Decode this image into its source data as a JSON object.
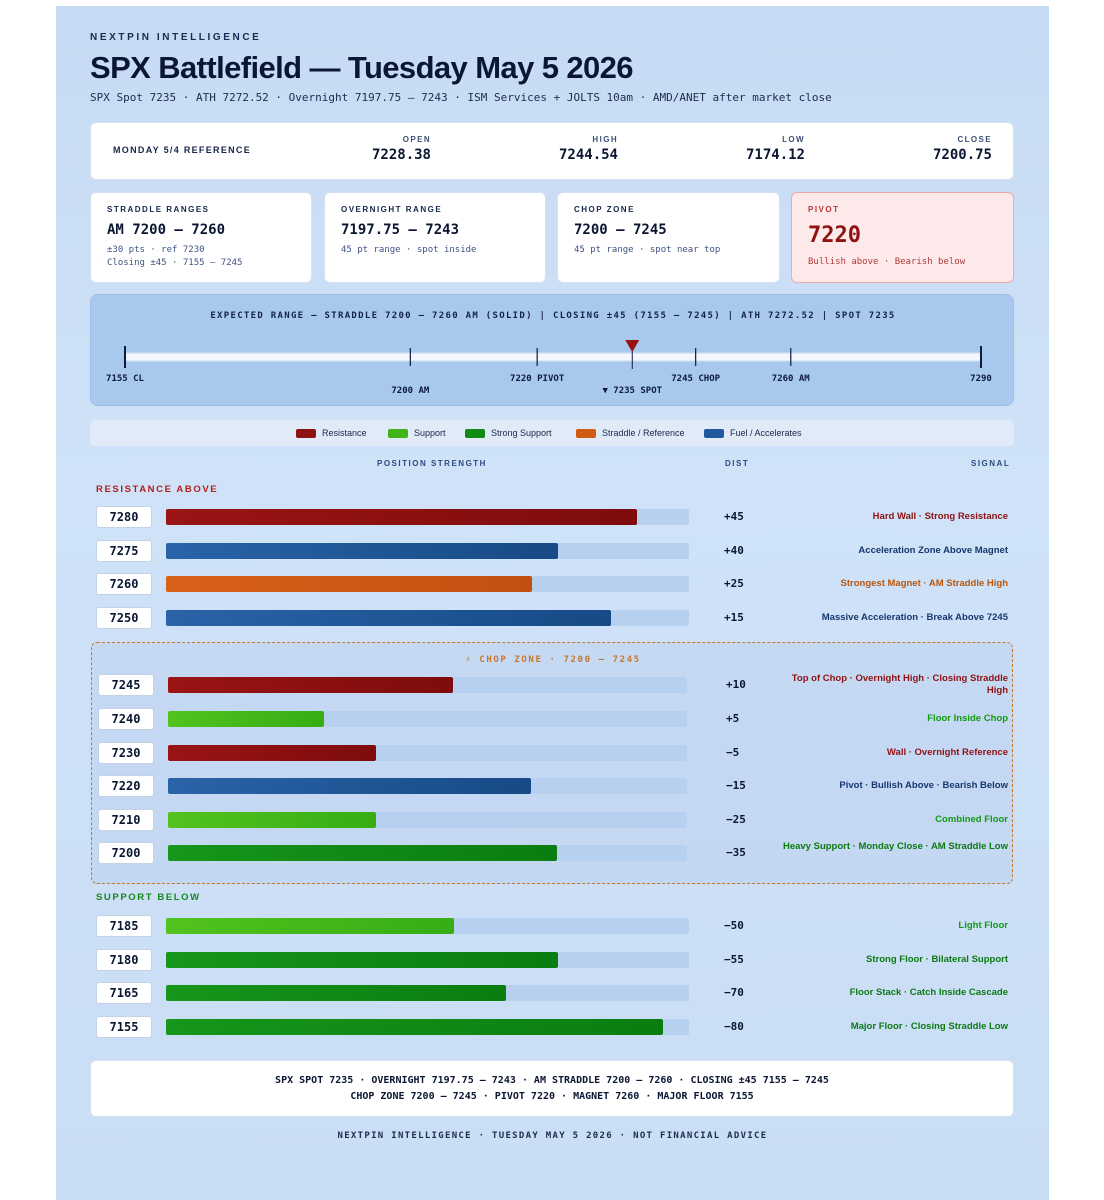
{
  "header": {
    "brand": "NEXTPIN INTELLIGENCE",
    "title": "SPX Battlefield — Tuesday May 5 2026",
    "subtitle": "SPX Spot 7235 · ATH 7272.52 · Overnight 7197.75 — 7243 · ISM Services + JOLTS 10am · AMD/ANET after market close"
  },
  "reference": {
    "label": "MONDAY 5/4 REFERENCE",
    "columns": [
      {
        "k": "OPEN",
        "v": "7228.38"
      },
      {
        "k": "HIGH",
        "v": "7244.54"
      },
      {
        "k": "LOW",
        "v": "7174.12"
      },
      {
        "k": "CLOSE",
        "v": "7200.75"
      }
    ]
  },
  "stat_cards": [
    {
      "k": "STRADDLE RANGES",
      "v": "AM 7200 — 7260",
      "d1": "±30 pts · ref 7230",
      "d2": "Closing ±45 · 7155 — 7245"
    },
    {
      "k": "OVERNIGHT RANGE",
      "v": "7197.75 — 7243",
      "d1": "45 pt range · spot inside",
      "d2": ""
    },
    {
      "k": "CHOP ZONE",
      "v": "7200 — 7245",
      "d1": "45 pt range · spot near top",
      "d2": ""
    },
    {
      "k": "PIVOT",
      "v": "7220",
      "d1": "Bullish above · Bearish below",
      "d2": ""
    }
  ],
  "range_chart": {
    "title": "EXPECTED RANGE — STRADDLE 7200 — 7260 AM (SOLID) | CLOSING ±45 (7155 — 7245) | ATH 7272.52 | SPOT 7235",
    "min": 7155,
    "max": 7290,
    "spot": 7235,
    "spot_label": "▼ 7235 SPOT",
    "ticks": [
      {
        "v": 7155,
        "label": "7155 CL",
        "pos": "above",
        "edge": true
      },
      {
        "v": 7200,
        "label": "7200 AM",
        "pos": "below",
        "edge": false
      },
      {
        "v": 7220,
        "label": "7220 PIVOT",
        "pos": "above",
        "edge": false
      },
      {
        "v": 7245,
        "label": "7245 CHOP",
        "pos": "above",
        "edge": false
      },
      {
        "v": 7260,
        "label": "7260 AM",
        "pos": "above",
        "edge": false
      },
      {
        "v": 7290,
        "label": "7290",
        "pos": "above",
        "edge": true
      }
    ],
    "spot_color": "#9b1010"
  },
  "legend": [
    {
      "label": "Resistance",
      "color": "#8e1212"
    },
    {
      "label": "Support",
      "color": "#3fb51a"
    },
    {
      "label": "Strong Support",
      "color": "#0f8a12"
    },
    {
      "label": "Straddle / Reference",
      "color": "#cf5a12"
    },
    {
      "label": "Fuel / Accelerates",
      "color": "#1f5a9e"
    }
  ],
  "columns": {
    "strength": "POSITION STRENGTH",
    "dist": "DIST",
    "signal": "SIGNAL"
  },
  "sections": {
    "resistance": "RESISTANCE ABOVE",
    "chop": "⚡ CHOP ZONE · 7200 — 7245",
    "support": "SUPPORT BELOW"
  },
  "colors": {
    "resistance": "#8e1212",
    "support": "#3fb51a",
    "strong": "#0f8a12",
    "straddle": "#cf5a12",
    "fuel": "#1f5a9e",
    "sig_resistance": "#8e1212",
    "sig_support": "#129a12",
    "sig_strong": "#0c7a12",
    "sig_straddle": "#b8560f",
    "sig_fuel": "#17386e"
  },
  "chart_data": {
    "type": "bar",
    "orientation": "horizontal",
    "categories": [
      "7280",
      "7275",
      "7260",
      "7250",
      "7245",
      "7240",
      "7230",
      "7220",
      "7210",
      "7200",
      "7185",
      "7180",
      "7165",
      "7155"
    ],
    "values": [
      0.9,
      0.75,
      0.7,
      0.85,
      0.55,
      0.3,
      0.4,
      0.7,
      0.4,
      0.75,
      0.55,
      0.75,
      0.65,
      0.95
    ],
    "xlabel": "POSITION STRENGTH",
    "rows": [
      {
        "section": "resistance",
        "price": "7280",
        "strength": 0.9,
        "kind": "resistance",
        "dist": "+45",
        "signal": "Hard Wall · Strong Resistance"
      },
      {
        "section": "resistance",
        "price": "7275",
        "strength": 0.75,
        "kind": "fuel",
        "dist": "+40",
        "signal": "Acceleration Zone Above Magnet"
      },
      {
        "section": "resistance",
        "price": "7260",
        "strength": 0.7,
        "kind": "straddle",
        "dist": "+25",
        "signal": "Strongest Magnet · AM Straddle High"
      },
      {
        "section": "resistance",
        "price": "7250",
        "strength": 0.85,
        "kind": "fuel",
        "dist": "+15",
        "signal": "Massive Acceleration · Break Above 7245"
      },
      {
        "section": "chop",
        "price": "7245",
        "strength": 0.55,
        "kind": "resistance",
        "dist": "+10",
        "signal": "Top of Chop · Overnight High · Closing Straddle High"
      },
      {
        "section": "chop",
        "price": "7240",
        "strength": 0.3,
        "kind": "support",
        "dist": "+5",
        "signal": "Floor Inside Chop"
      },
      {
        "section": "chop",
        "price": "7230",
        "strength": 0.4,
        "kind": "resistance",
        "dist": "−5",
        "signal": "Wall · Overnight Reference"
      },
      {
        "section": "chop",
        "price": "7220",
        "strength": 0.7,
        "kind": "fuel",
        "dist": "−15",
        "signal": "Pivot · Bullish Above · Bearish Below"
      },
      {
        "section": "chop",
        "price": "7210",
        "strength": 0.4,
        "kind": "support",
        "dist": "−25",
        "signal": "Combined Floor"
      },
      {
        "section": "chop",
        "price": "7200",
        "strength": 0.75,
        "kind": "strong",
        "dist": "−35",
        "signal": "Heavy Support · Monday Close · AM Straddle Low"
      },
      {
        "section": "support",
        "price": "7185",
        "strength": 0.55,
        "kind": "support",
        "dist": "−50",
        "signal": "Light Floor"
      },
      {
        "section": "support",
        "price": "7180",
        "strength": 0.75,
        "kind": "strong",
        "dist": "−55",
        "signal": "Strong Floor · Bilateral Support"
      },
      {
        "section": "support",
        "price": "7165",
        "strength": 0.65,
        "kind": "strong",
        "dist": "−70",
        "signal": "Floor Stack · Catch Inside Cascade"
      },
      {
        "section": "support",
        "price": "7155",
        "strength": 0.95,
        "kind": "strong",
        "dist": "−80",
        "signal": "Major Floor · Closing Straddle Low"
      }
    ]
  },
  "summary": {
    "line1": "SPX SPOT 7235 · OVERNIGHT 7197.75 — 7243 · AM STRADDLE 7200 — 7260 · CLOSING ±45 7155 — 7245",
    "line2": "CHOP ZONE 7200 — 7245 · PIVOT 7220 · MAGNET 7260 · MAJOR FLOOR 7155"
  },
  "footer": "NEXTPIN INTELLIGENCE · TUESDAY MAY 5 2026 · NOT FINANCIAL ADVICE"
}
